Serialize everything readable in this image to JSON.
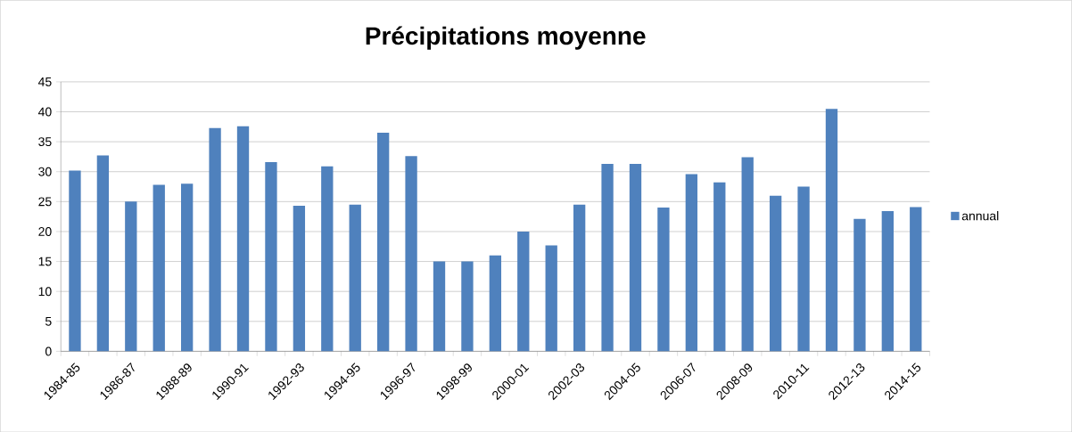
{
  "chart_data": {
    "type": "bar",
    "title": "Précipitations moyenne",
    "categories": [
      "1984-85",
      null,
      "1986-87",
      null,
      "1988-89",
      null,
      "1990-91",
      null,
      "1992-93",
      null,
      "1994-95",
      null,
      "1996-97",
      null,
      "1998-99",
      null,
      "2000-01",
      null,
      "2002-03",
      null,
      "2004-05",
      null,
      "2006-07",
      null,
      "2008-09",
      null,
      "2010-11",
      null,
      "2012-13",
      null,
      "2014-15"
    ],
    "series": [
      {
        "name": "annual",
        "color": "#4f81bd",
        "values": [
          30.2,
          32.7,
          25,
          27.8,
          28,
          37.3,
          37.6,
          31.6,
          24.3,
          30.9,
          24.5,
          36.5,
          32.6,
          15,
          15,
          16,
          20,
          17.7,
          24.5,
          31.3,
          31.3,
          24,
          29.6,
          28.2,
          32.4,
          26,
          27.5,
          40.5,
          22.1,
          23.4,
          24.1
        ]
      }
    ],
    "ylim": [
      0,
      45
    ],
    "yticks": [
      0,
      5,
      10,
      15,
      20,
      25,
      30,
      35,
      40,
      45
    ],
    "grid": "y",
    "legend": "right"
  }
}
